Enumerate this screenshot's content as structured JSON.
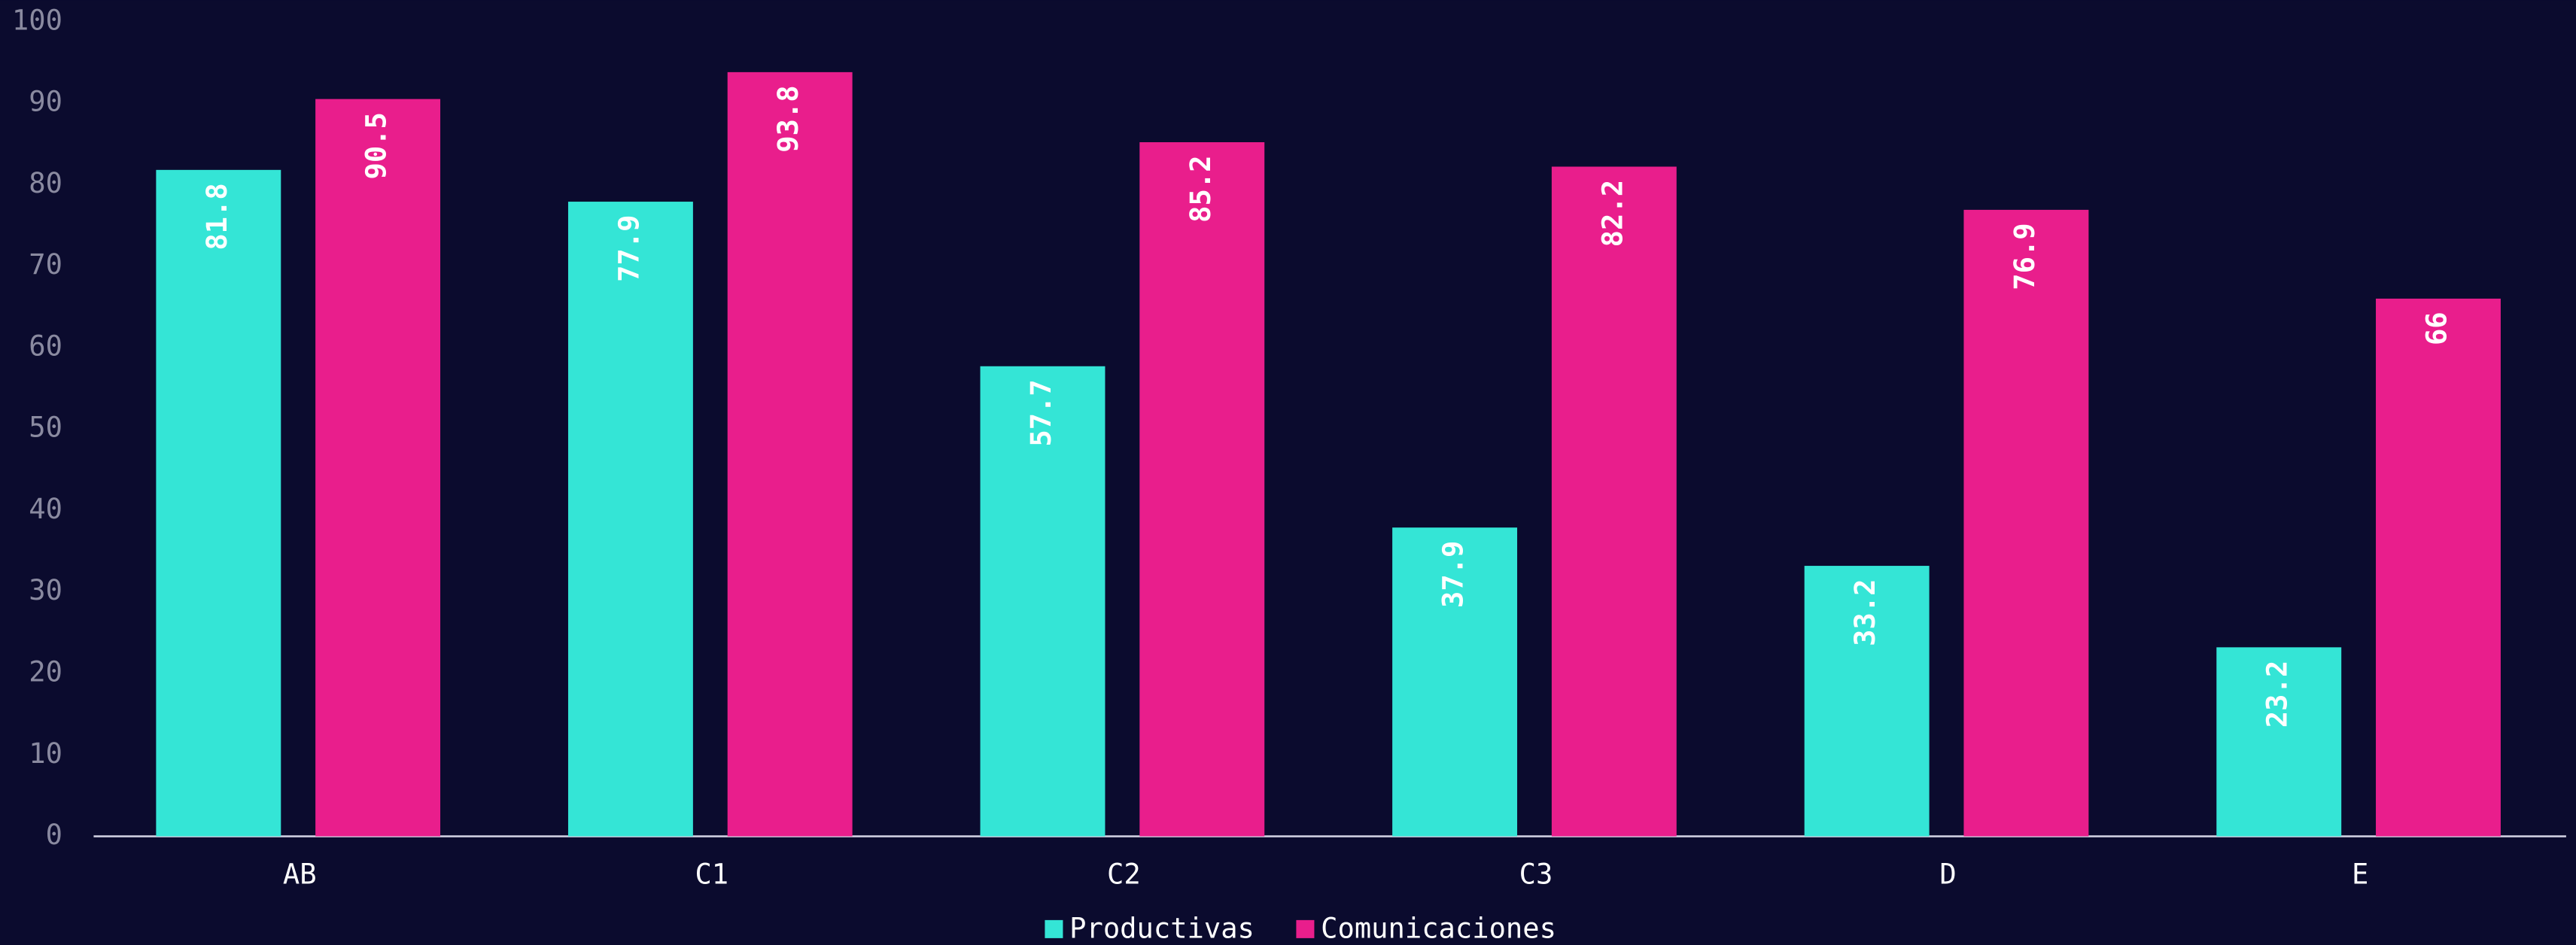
{
  "chart_data": {
    "type": "bar",
    "categories": [
      "AB",
      "C1",
      "C2",
      "C3",
      "D",
      "E"
    ],
    "series": [
      {
        "name": "Productivas",
        "color": "#34e5d6",
        "values": [
          81.8,
          77.9,
          57.7,
          37.9,
          33.2,
          23.2
        ]
      },
      {
        "name": "Comunicaciones",
        "color": "#e91e8c",
        "values": [
          90.5,
          93.8,
          85.2,
          82.2,
          76.9,
          66
        ]
      }
    ],
    "ylim": [
      0,
      100
    ],
    "yticks": [
      0,
      10,
      20,
      30,
      40,
      50,
      60,
      70,
      80,
      90,
      100
    ],
    "grid": false,
    "legend": "bottom"
  }
}
